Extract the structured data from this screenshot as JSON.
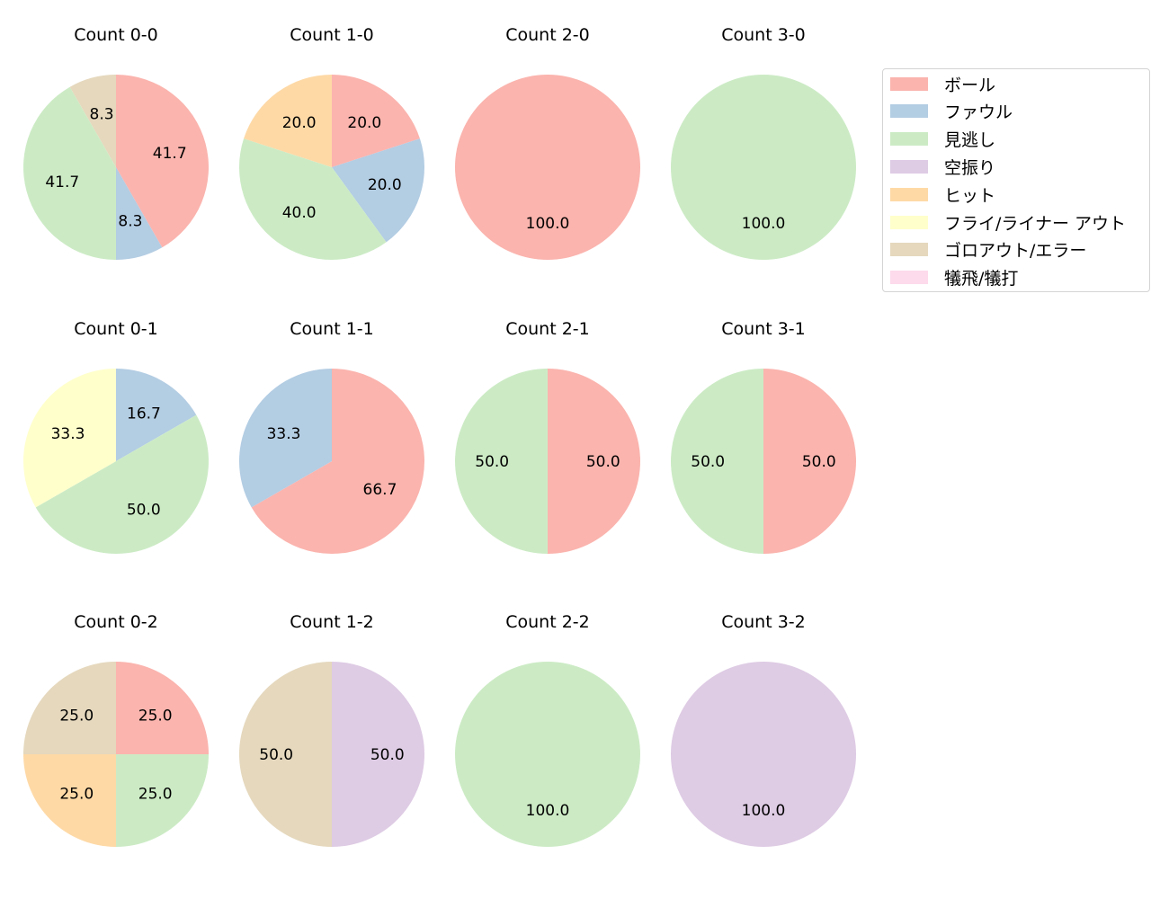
{
  "chart_data": {
    "type": "pie",
    "legend": {
      "position": "upper right",
      "entries": [
        {
          "label": "ボール",
          "color": "#fbb4ae"
        },
        {
          "label": "ファウル",
          "color": "#b3cde3"
        },
        {
          "label": "見逃し",
          "color": "#ccebc5"
        },
        {
          "label": "空振り",
          "color": "#decbe4"
        },
        {
          "label": "ヒット",
          "color": "#fed9a6"
        },
        {
          "label": "フライ/ライナー アウト",
          "color": "#ffffcc"
        },
        {
          "label": "ゴロアウト/エラー",
          "color": "#e5d8bd"
        },
        {
          "label": "犠飛/犠打",
          "color": "#fddaec"
        }
      ]
    },
    "charts": [
      {
        "title": "Count 0-0",
        "slices": [
          {
            "label": "ボール",
            "value": 41.7
          },
          {
            "label": "ファウル",
            "value": 8.3
          },
          {
            "label": "見逃し",
            "value": 41.7
          },
          {
            "label": "ゴロアウト/エラー",
            "value": 8.3
          }
        ]
      },
      {
        "title": "Count 1-0",
        "slices": [
          {
            "label": "ボール",
            "value": 20.0
          },
          {
            "label": "ファウル",
            "value": 20.0
          },
          {
            "label": "見逃し",
            "value": 40.0
          },
          {
            "label": "ヒット",
            "value": 20.0
          }
        ]
      },
      {
        "title": "Count 2-0",
        "slices": [
          {
            "label": "ボール",
            "value": 100.0
          }
        ]
      },
      {
        "title": "Count 3-0",
        "slices": [
          {
            "label": "見逃し",
            "value": 100.0
          }
        ]
      },
      {
        "title": "Count 0-1",
        "slices": [
          {
            "label": "ファウル",
            "value": 16.7
          },
          {
            "label": "見逃し",
            "value": 50.0
          },
          {
            "label": "フライ/ライナー アウト",
            "value": 33.3
          }
        ]
      },
      {
        "title": "Count 1-1",
        "slices": [
          {
            "label": "ボール",
            "value": 66.7
          },
          {
            "label": "ファウル",
            "value": 33.3
          }
        ]
      },
      {
        "title": "Count 2-1",
        "slices": [
          {
            "label": "ボール",
            "value": 50.0
          },
          {
            "label": "見逃し",
            "value": 50.0
          }
        ]
      },
      {
        "title": "Count 3-1",
        "slices": [
          {
            "label": "ボール",
            "value": 50.0
          },
          {
            "label": "見逃し",
            "value": 50.0
          }
        ]
      },
      {
        "title": "Count 0-2",
        "slices": [
          {
            "label": "ボール",
            "value": 25.0
          },
          {
            "label": "見逃し",
            "value": 25.0
          },
          {
            "label": "ヒット",
            "value": 25.0
          },
          {
            "label": "ゴロアウト/エラー",
            "value": 25.0
          }
        ]
      },
      {
        "title": "Count 1-2",
        "slices": [
          {
            "label": "空振り",
            "value": 50.0
          },
          {
            "label": "ゴロアウト/エラー",
            "value": 50.0
          }
        ]
      },
      {
        "title": "Count 2-2",
        "slices": [
          {
            "label": "見逃し",
            "value": 100.0
          }
        ]
      },
      {
        "title": "Count 3-2",
        "slices": [
          {
            "label": "空振り",
            "value": 100.0
          }
        ]
      }
    ],
    "layout": {
      "rows": 3,
      "cols": 4,
      "start_angle": 90,
      "direction": "clockwise",
      "label_format": "%.1f"
    }
  }
}
